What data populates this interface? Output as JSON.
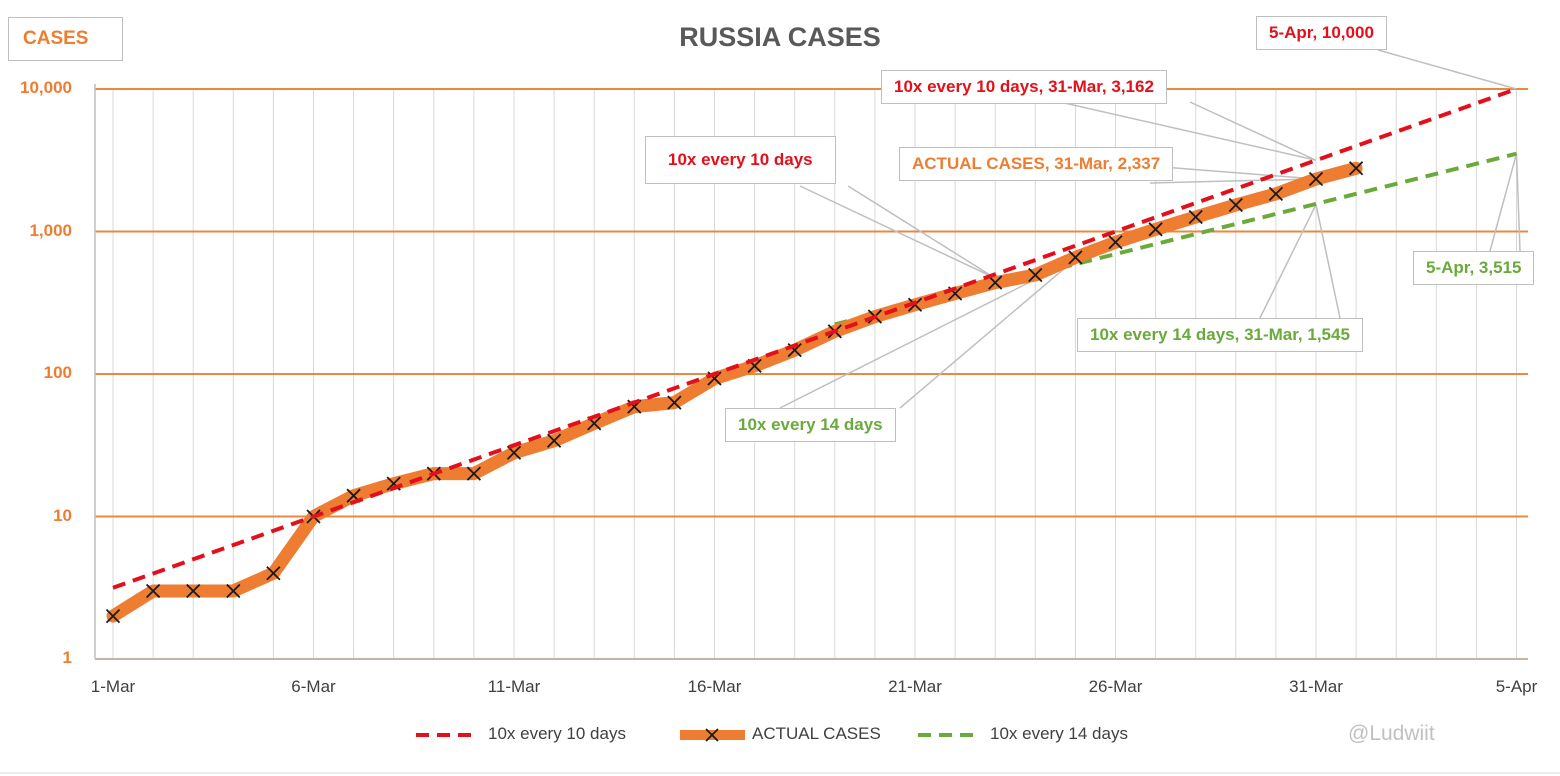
{
  "title": "RUSSIA CASES",
  "y_axis_title": "CASES",
  "watermark": "@Ludwiit",
  "colors": {
    "actual": "#ee7d31",
    "ten_x_10": "#e3101b",
    "ten_x_14": "#6aaa3a",
    "grid_major": "#e7893f",
    "grid_minor": "#d9d9d9",
    "text_gray": "#595959"
  },
  "legend": [
    {
      "label": "10x every 10 days",
      "style": "dashed-red"
    },
    {
      "label": "ACTUAL CASES",
      "style": "thick-orange-x"
    },
    {
      "label": "10x every 14 days",
      "style": "dashed-green"
    }
  ],
  "annotations": {
    "red_5apr": "5-Apr, 10,000",
    "red_31mar": "10x every 10 days, 31-Mar, 3,162",
    "red_line": "10x every 10 days",
    "actual_31mar": "ACTUAL CASES, 31-Mar, 2,337",
    "green_5apr": "5-Apr, 3,515",
    "green_31mar": "10x every 14 days, 31-Mar, 1,545",
    "green_line": "10x every 14 days"
  },
  "chart_data": {
    "type": "line",
    "title": "RUSSIA CASES",
    "ylabel": "CASES",
    "xlabel": "",
    "y_scale": "log",
    "ylim": [
      1,
      10000
    ],
    "yticks": [
      "1",
      "10",
      "100",
      "1,000",
      "10,000"
    ],
    "xlim": [
      "2020-03-01",
      "2020-04-06"
    ],
    "xticks": [
      "1-Mar",
      "6-Mar",
      "11-Mar",
      "16-Mar",
      "21-Mar",
      "26-Mar",
      "31-Mar",
      "5-Apr"
    ],
    "grid": true,
    "legend_position": "bottom",
    "series": [
      {
        "name": "10x every 10 days",
        "style": "dashed",
        "points": [
          {
            "x": "2020-03-01",
            "y": 3.16
          },
          {
            "x": "2020-04-05",
            "y": 10000
          }
        ]
      },
      {
        "name": "ACTUAL CASES",
        "style": "solid-thick-markers",
        "points": [
          {
            "x": "2020-03-01",
            "y": 2
          },
          {
            "x": "2020-03-02",
            "y": 3
          },
          {
            "x": "2020-03-03",
            "y": 3
          },
          {
            "x": "2020-03-04",
            "y": 3
          },
          {
            "x": "2020-03-05",
            "y": 4
          },
          {
            "x": "2020-03-06",
            "y": 10
          },
          {
            "x": "2020-03-07",
            "y": 14
          },
          {
            "x": "2020-03-08",
            "y": 17
          },
          {
            "x": "2020-03-09",
            "y": 20
          },
          {
            "x": "2020-03-10",
            "y": 20
          },
          {
            "x": "2020-03-11",
            "y": 28
          },
          {
            "x": "2020-03-12",
            "y": 34
          },
          {
            "x": "2020-03-13",
            "y": 45
          },
          {
            "x": "2020-03-14",
            "y": 59
          },
          {
            "x": "2020-03-15",
            "y": 63
          },
          {
            "x": "2020-03-16",
            "y": 93
          },
          {
            "x": "2020-03-17",
            "y": 114
          },
          {
            "x": "2020-03-18",
            "y": 147
          },
          {
            "x": "2020-03-19",
            "y": 199
          },
          {
            "x": "2020-03-20",
            "y": 253
          },
          {
            "x": "2020-03-21",
            "y": 306
          },
          {
            "x": "2020-03-22",
            "y": 367
          },
          {
            "x": "2020-03-23",
            "y": 438
          },
          {
            "x": "2020-03-24",
            "y": 495
          },
          {
            "x": "2020-03-25",
            "y": 658
          },
          {
            "x": "2020-03-26",
            "y": 840
          },
          {
            "x": "2020-03-27",
            "y": 1036
          },
          {
            "x": "2020-03-28",
            "y": 1264
          },
          {
            "x": "2020-03-29",
            "y": 1534
          },
          {
            "x": "2020-03-30",
            "y": 1836
          },
          {
            "x": "2020-03-31",
            "y": 2337
          },
          {
            "x": "2020-04-01",
            "y": 2777
          }
        ]
      },
      {
        "name": "10x every 14 days",
        "style": "dashed",
        "points": [
          {
            "x": "2020-03-19",
            "y": 223
          },
          {
            "x": "2020-04-05",
            "y": 3515
          }
        ]
      }
    ]
  }
}
